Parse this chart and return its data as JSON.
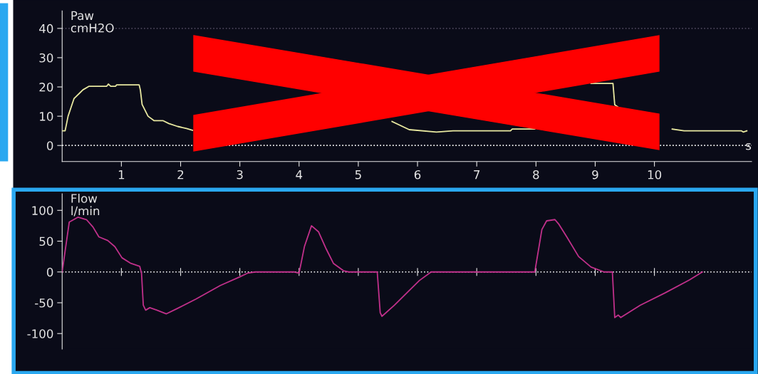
{
  "chart_data": [
    {
      "type": "line",
      "title": "Paw",
      "ylabel": "cmH2O",
      "xlabel": "s",
      "series": [
        {
          "color": "#e8e8a0",
          "x": [
            0,
            0.05,
            0.1,
            0.15,
            0.2,
            0.3,
            0.35,
            0.45,
            0.75,
            0.78,
            0.82,
            0.9,
            0.92,
            1.3,
            1.32,
            1.35,
            1.4,
            1.45,
            1.55,
            1.7,
            1.8,
            1.95,
            2.1,
            2.2,
            2.25,
            3.5,
            5.45,
            5.57,
            5.86,
            6.32,
            6.6,
            7.57,
            7.6,
            7.98,
            8.1,
            8.18,
            8.27,
            8.64,
            8.93,
            9.3,
            9.33,
            9.38,
            9.7,
            10.05,
            10.3,
            10.5,
            11.47,
            11.5,
            11.56
          ],
          "values": [
            5,
            5,
            10,
            13,
            16,
            18,
            19,
            20.2,
            20.2,
            21,
            20.2,
            20.2,
            20.7,
            20.7,
            19,
            14,
            12,
            10,
            8.5,
            8.5,
            7.5,
            6.5,
            5.8,
            5.2,
            null,
            null,
            null,
            8.2,
            5.4,
            4.6,
            5,
            5,
            5.6,
            5.6,
            null,
            null,
            null,
            null,
            21.2,
            21.2,
            13.9,
            13.2,
            null,
            null,
            5.6,
            5,
            5,
            4.6,
            5
          ]
        }
      ],
      "xlim": [
        0,
        11.64
      ],
      "ylim": [
        -5.5,
        46
      ],
      "xticks": [
        1,
        2,
        3,
        4,
        5,
        6,
        7,
        8,
        9,
        10
      ],
      "yticks": [
        0,
        10,
        20,
        30,
        40
      ],
      "ref_lines": [
        {
          "axis": "y",
          "value": 0,
          "color": "#ffffff",
          "line_style": "dotted"
        },
        {
          "axis": "y",
          "value": 40,
          "color": "#4a4458",
          "line_style": "dotted"
        }
      ],
      "grid": false
    },
    {
      "type": "line",
      "title": "Flow",
      "ylabel": "l/min",
      "series": [
        {
          "color": "#c0308a",
          "x": [
            0,
            0.12,
            0.27,
            0.41,
            0.52,
            0.62,
            0.77,
            0.89,
            1.01,
            1.16,
            1.31,
            1.34,
            1.37,
            1.41,
            1.48,
            1.6,
            1.76,
            1.93,
            2.26,
            2.67,
            3.0,
            3.13,
            3.26,
            3.92,
            4.0,
            4.09,
            4.21,
            4.33,
            4.46,
            4.58,
            4.75,
            4.84,
            5.32,
            5.37,
            5.4,
            5.61,
            5.82,
            6.03,
            6.23,
            7.98,
            8.1,
            8.18,
            8.32,
            8.39,
            8.52,
            8.72,
            8.93,
            9.15,
            9.29,
            9.33,
            9.39,
            9.43,
            9.76,
            10.18,
            10.59,
            10.81
          ],
          "values": [
            0,
            81,
            89,
            85,
            73,
            57,
            51,
            41,
            23,
            14,
            9,
            -2,
            -54,
            -62,
            -58,
            -62,
            -68,
            -60,
            -44,
            -22,
            -8,
            -2,
            0,
            0,
            -2,
            41,
            75,
            65,
            37,
            14,
            2,
            0,
            0,
            -66,
            -72,
            -54,
            -34,
            -14,
            0,
            0,
            69,
            83,
            85,
            77,
            57,
            25,
            8,
            0,
            0,
            -74,
            -70,
            -74,
            -54,
            -34,
            -13,
            0
          ]
        }
      ],
      "xlim": [
        0,
        11.64
      ],
      "ylim": [
        -125,
        127
      ],
      "xticks": [
        {
          "value": 1,
          "label": null
        },
        {
          "value": 2,
          "label": null
        },
        {
          "value": 3,
          "label": null
        },
        {
          "value": 4,
          "label": null
        },
        {
          "value": 5,
          "label": null
        },
        {
          "value": 6,
          "label": null
        },
        {
          "value": 7,
          "label": null
        },
        {
          "value": 8,
          "label": null
        },
        {
          "value": 9,
          "label": null
        },
        {
          "value": 10,
          "label": null
        }
      ],
      "yticks": [
        -100,
        -50,
        0,
        50,
        100
      ],
      "ref_lines": [
        {
          "axis": "y",
          "value": 0,
          "color": "#ffffff",
          "line_style": "dotted"
        }
      ],
      "tick_labels": "y",
      "grid": false
    }
  ]
}
